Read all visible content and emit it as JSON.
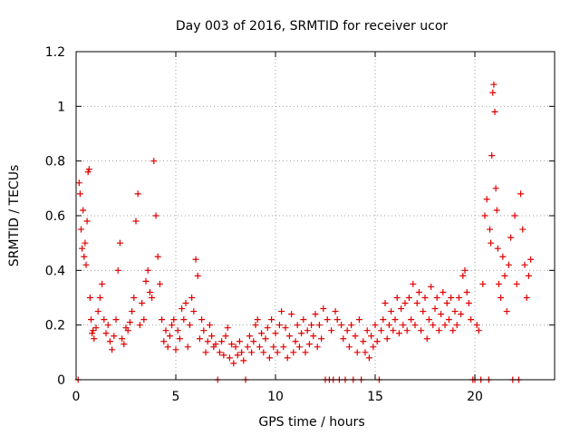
{
  "chart_data": {
    "type": "scatter",
    "title": "Day 003 of 2016, SRMTID for receiver ucor",
    "xlabel": "GPS time / hours",
    "ylabel": "SRMTID / TECUs",
    "xlim": [
      0,
      24
    ],
    "ylim": [
      0,
      1.2
    ],
    "x_ticks": [
      0,
      5,
      10,
      15,
      20
    ],
    "x_tick_labels": [
      "0",
      "5",
      "10",
      "15",
      "20"
    ],
    "y_ticks": [
      0,
      0.2,
      0.4,
      0.6,
      0.8,
      1.0,
      1.2
    ],
    "y_tick_labels": [
      "0",
      "0.2",
      "0.4",
      "0.6",
      "0.8",
      "1",
      "1.2"
    ],
    "grid": true,
    "marker": "plus",
    "color": "#e00000",
    "series": [
      {
        "name": "SRMTID",
        "points": [
          [
            0.1,
            0.0
          ],
          [
            0.15,
            0.72
          ],
          [
            0.2,
            0.68
          ],
          [
            0.25,
            0.55
          ],
          [
            0.3,
            0.48
          ],
          [
            0.35,
            0.62
          ],
          [
            0.4,
            0.45
          ],
          [
            0.45,
            0.5
          ],
          [
            0.5,
            0.42
          ],
          [
            0.55,
            0.58
          ],
          [
            0.6,
            0.76
          ],
          [
            0.65,
            0.77
          ],
          [
            0.7,
            0.3
          ],
          [
            0.75,
            0.22
          ],
          [
            0.8,
            0.17
          ],
          [
            0.85,
            0.18
          ],
          [
            0.9,
            0.15
          ],
          [
            1.0,
            0.19
          ],
          [
            1.1,
            0.25
          ],
          [
            1.2,
            0.3
          ],
          [
            1.3,
            0.35
          ],
          [
            1.4,
            0.22
          ],
          [
            1.5,
            0.17
          ],
          [
            1.6,
            0.2
          ],
          [
            1.7,
            0.14
          ],
          [
            1.8,
            0.11
          ],
          [
            1.9,
            0.16
          ],
          [
            2.0,
            0.22
          ],
          [
            2.1,
            0.4
          ],
          [
            2.2,
            0.5
          ],
          [
            2.3,
            0.15
          ],
          [
            2.4,
            0.13
          ],
          [
            2.5,
            0.19
          ],
          [
            2.6,
            0.18
          ],
          [
            2.7,
            0.21
          ],
          [
            2.8,
            0.25
          ],
          [
            2.9,
            0.3
          ],
          [
            3.0,
            0.58
          ],
          [
            3.1,
            0.68
          ],
          [
            3.2,
            0.2
          ],
          [
            3.3,
            0.28
          ],
          [
            3.4,
            0.22
          ],
          [
            3.5,
            0.36
          ],
          [
            3.6,
            0.4
          ],
          [
            3.7,
            0.32
          ],
          [
            3.8,
            0.3
          ],
          [
            3.9,
            0.8
          ],
          [
            4.0,
            0.6
          ],
          [
            4.1,
            0.45
          ],
          [
            4.2,
            0.35
          ],
          [
            4.3,
            0.22
          ],
          [
            4.4,
            0.14
          ],
          [
            4.5,
            0.18
          ],
          [
            4.6,
            0.12
          ],
          [
            4.7,
            0.16
          ],
          [
            4.8,
            0.2
          ],
          [
            4.9,
            0.22
          ],
          [
            5.0,
            0.11
          ],
          [
            5.1,
            0.18
          ],
          [
            5.2,
            0.15
          ],
          [
            5.3,
            0.26
          ],
          [
            5.4,
            0.22
          ],
          [
            5.5,
            0.28
          ],
          [
            5.6,
            0.12
          ],
          [
            5.7,
            0.2
          ],
          [
            5.8,
            0.3
          ],
          [
            5.9,
            0.25
          ],
          [
            6.0,
            0.44
          ],
          [
            6.1,
            0.38
          ],
          [
            6.2,
            0.15
          ],
          [
            6.3,
            0.22
          ],
          [
            6.4,
            0.18
          ],
          [
            6.5,
            0.1
          ],
          [
            6.6,
            0.14
          ],
          [
            6.7,
            0.2
          ],
          [
            6.8,
            0.16
          ],
          [
            6.9,
            0.12
          ],
          [
            7.0,
            0.13
          ],
          [
            7.1,
            0.0
          ],
          [
            7.2,
            0.1
          ],
          [
            7.3,
            0.14
          ],
          [
            7.4,
            0.09
          ],
          [
            7.5,
            0.16
          ],
          [
            7.6,
            0.19
          ],
          [
            7.7,
            0.08
          ],
          [
            7.8,
            0.13
          ],
          [
            7.9,
            0.06
          ],
          [
            8.0,
            0.12
          ],
          [
            8.1,
            0.09
          ],
          [
            8.2,
            0.14
          ],
          [
            8.3,
            0.1
          ],
          [
            8.4,
            0.07
          ],
          [
            8.5,
            0.0
          ],
          [
            8.6,
            0.12
          ],
          [
            8.7,
            0.16
          ],
          [
            8.8,
            0.1
          ],
          [
            8.9,
            0.14
          ],
          [
            9.0,
            0.2
          ],
          [
            9.1,
            0.22
          ],
          [
            9.2,
            0.12
          ],
          [
            9.3,
            0.17
          ],
          [
            9.4,
            0.1
          ],
          [
            9.5,
            0.15
          ],
          [
            9.6,
            0.19
          ],
          [
            9.7,
            0.08
          ],
          [
            9.8,
            0.22
          ],
          [
            9.9,
            0.12
          ],
          [
            10.0,
            0.17
          ],
          [
            10.1,
            0.1
          ],
          [
            10.2,
            0.2
          ],
          [
            10.3,
            0.25
          ],
          [
            10.4,
            0.12
          ],
          [
            10.5,
            0.19
          ],
          [
            10.6,
            0.08
          ],
          [
            10.7,
            0.16
          ],
          [
            10.8,
            0.24
          ],
          [
            10.9,
            0.1
          ],
          [
            11.0,
            0.14
          ],
          [
            11.1,
            0.2
          ],
          [
            11.2,
            0.12
          ],
          [
            11.3,
            0.17
          ],
          [
            11.4,
            0.22
          ],
          [
            11.5,
            0.1
          ],
          [
            11.6,
            0.18
          ],
          [
            11.7,
            0.13
          ],
          [
            11.8,
            0.2
          ],
          [
            11.9,
            0.16
          ],
          [
            12.0,
            0.24
          ],
          [
            12.1,
            0.12
          ],
          [
            12.2,
            0.2
          ],
          [
            12.3,
            0.15
          ],
          [
            12.4,
            0.26
          ],
          [
            12.5,
            0.0
          ],
          [
            12.6,
            0.22
          ],
          [
            12.7,
            0.0
          ],
          [
            12.8,
            0.18
          ],
          [
            12.9,
            0.0
          ],
          [
            13.0,
            0.25
          ],
          [
            13.1,
            0.22
          ],
          [
            13.2,
            0.0
          ],
          [
            13.3,
            0.2
          ],
          [
            13.4,
            0.15
          ],
          [
            13.5,
            0.0
          ],
          [
            13.6,
            0.18
          ],
          [
            13.7,
            0.12
          ],
          [
            13.8,
            0.2
          ],
          [
            13.9,
            0.0
          ],
          [
            14.0,
            0.16
          ],
          [
            14.1,
            0.1
          ],
          [
            14.2,
            0.22
          ],
          [
            14.3,
            0.0
          ],
          [
            14.4,
            0.14
          ],
          [
            14.5,
            0.1
          ],
          [
            14.6,
            0.18
          ],
          [
            14.7,
            0.08
          ],
          [
            14.8,
            0.16
          ],
          [
            14.9,
            0.12
          ],
          [
            15.0,
            0.2
          ],
          [
            15.1,
            0.14
          ],
          [
            15.2,
            0.0
          ],
          [
            15.3,
            0.18
          ],
          [
            15.4,
            0.22
          ],
          [
            15.5,
            0.28
          ],
          [
            15.6,
            0.15
          ],
          [
            15.7,
            0.2
          ],
          [
            15.8,
            0.25
          ],
          [
            15.9,
            0.18
          ],
          [
            16.0,
            0.22
          ],
          [
            16.1,
            0.3
          ],
          [
            16.2,
            0.17
          ],
          [
            16.3,
            0.26
          ],
          [
            16.4,
            0.2
          ],
          [
            16.5,
            0.28
          ],
          [
            16.6,
            0.18
          ],
          [
            16.7,
            0.3
          ],
          [
            16.8,
            0.22
          ],
          [
            16.9,
            0.35
          ],
          [
            17.0,
            0.2
          ],
          [
            17.1,
            0.28
          ],
          [
            17.2,
            0.32
          ],
          [
            17.3,
            0.18
          ],
          [
            17.4,
            0.25
          ],
          [
            17.5,
            0.3
          ],
          [
            17.6,
            0.15
          ],
          [
            17.7,
            0.22
          ],
          [
            17.8,
            0.34
          ],
          [
            17.9,
            0.2
          ],
          [
            18.0,
            0.26
          ],
          [
            18.1,
            0.3
          ],
          [
            18.2,
            0.18
          ],
          [
            18.3,
            0.24
          ],
          [
            18.4,
            0.32
          ],
          [
            18.5,
            0.2
          ],
          [
            18.6,
            0.28
          ],
          [
            18.7,
            0.22
          ],
          [
            18.8,
            0.3
          ],
          [
            18.9,
            0.18
          ],
          [
            19.0,
            0.25
          ],
          [
            19.1,
            0.2
          ],
          [
            19.2,
            0.3
          ],
          [
            19.3,
            0.24
          ],
          [
            19.4,
            0.38
          ],
          [
            19.5,
            0.4
          ],
          [
            19.6,
            0.32
          ],
          [
            19.7,
            0.28
          ],
          [
            19.8,
            0.22
          ],
          [
            19.9,
            0.0
          ],
          [
            20.0,
            0.0
          ],
          [
            20.1,
            0.2
          ],
          [
            20.2,
            0.18
          ],
          [
            20.3,
            0.0
          ],
          [
            20.4,
            0.35
          ],
          [
            20.5,
            0.6
          ],
          [
            20.6,
            0.66
          ],
          [
            20.7,
            0.0
          ],
          [
            20.75,
            0.55
          ],
          [
            20.8,
            0.5
          ],
          [
            20.85,
            0.82
          ],
          [
            20.9,
            1.05
          ],
          [
            20.95,
            1.08
          ],
          [
            21.0,
            0.98
          ],
          [
            21.05,
            0.7
          ],
          [
            21.1,
            0.62
          ],
          [
            21.15,
            0.48
          ],
          [
            21.2,
            0.35
          ],
          [
            21.3,
            0.3
          ],
          [
            21.4,
            0.45
          ],
          [
            21.5,
            0.38
          ],
          [
            21.6,
            0.25
          ],
          [
            21.7,
            0.42
          ],
          [
            21.8,
            0.52
          ],
          [
            21.9,
            0.0
          ],
          [
            22.0,
            0.6
          ],
          [
            22.1,
            0.35
          ],
          [
            22.2,
            0.0
          ],
          [
            22.3,
            0.68
          ],
          [
            22.4,
            0.55
          ],
          [
            22.5,
            0.42
          ],
          [
            22.6,
            0.3
          ],
          [
            22.7,
            0.38
          ],
          [
            22.8,
            0.44
          ]
        ]
      }
    ]
  }
}
